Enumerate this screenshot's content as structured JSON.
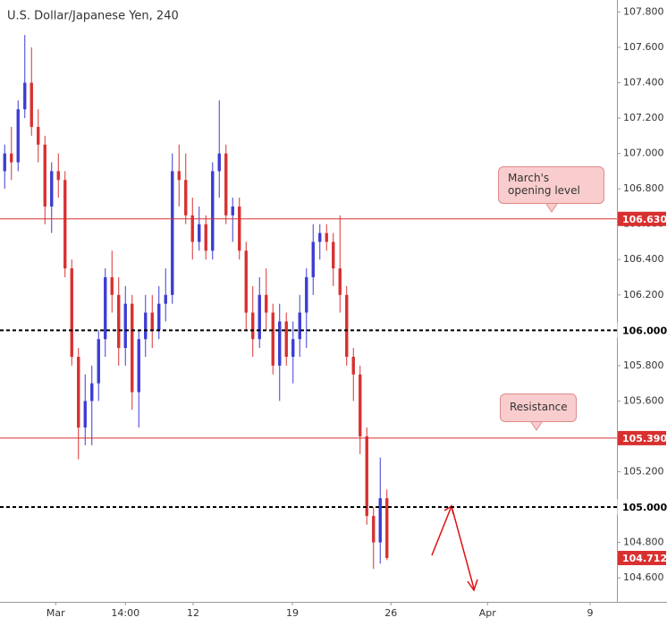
{
  "chart_data": {
    "type": "candlestick",
    "title": "U.S. Dollar/Japanese Yen, 240",
    "x": [
      0,
      1,
      2,
      3,
      4,
      5,
      6,
      7,
      8,
      9,
      10,
      11,
      12,
      13,
      14,
      15,
      16,
      17,
      18,
      19,
      20,
      21,
      22,
      23,
      24,
      25,
      26,
      27,
      28,
      29,
      30,
      31,
      32,
      33,
      34,
      35,
      36,
      37,
      38,
      39,
      40,
      41,
      42,
      43,
      44,
      45,
      46,
      47,
      48,
      49,
      50,
      51,
      52,
      53,
      54,
      55,
      56,
      57
    ],
    "open": [
      106.9,
      107.0,
      106.95,
      107.25,
      107.4,
      107.15,
      107.05,
      106.7,
      106.9,
      106.85,
      106.35,
      105.85,
      105.45,
      105.6,
      105.7,
      105.95,
      106.3,
      106.2,
      105.9,
      106.15,
      105.65,
      105.95,
      106.1,
      106.0,
      106.15,
      106.2,
      106.9,
      106.85,
      106.65,
      106.5,
      106.6,
      106.45,
      106.9,
      107.0,
      106.65,
      106.7,
      106.45,
      106.1,
      105.95,
      106.2,
      106.1,
      105.8,
      106.05,
      105.85,
      105.95,
      106.1,
      106.3,
      106.5,
      106.55,
      106.5,
      106.35,
      106.2,
      105.85,
      105.75,
      105.4,
      104.95,
      104.8,
      105.05
    ],
    "high": [
      107.05,
      107.15,
      107.3,
      107.67,
      107.6,
      107.25,
      107.1,
      106.95,
      107.0,
      106.9,
      106.4,
      105.9,
      105.75,
      105.8,
      106.0,
      106.35,
      106.45,
      106.3,
      106.25,
      106.2,
      106.0,
      106.2,
      106.2,
      106.25,
      106.35,
      107.0,
      107.05,
      107.0,
      106.75,
      106.7,
      106.65,
      106.95,
      107.3,
      107.05,
      106.75,
      106.75,
      106.5,
      106.25,
      106.3,
      106.35,
      106.15,
      106.15,
      106.1,
      106.05,
      106.2,
      106.35,
      106.6,
      106.6,
      106.6,
      106.55,
      106.65,
      106.25,
      105.9,
      105.8,
      105.45,
      105.0,
      105.28,
      105.1
    ],
    "low": [
      106.8,
      106.85,
      106.9,
      107.2,
      107.1,
      106.95,
      106.6,
      106.55,
      106.75,
      106.3,
      105.8,
      105.27,
      105.35,
      105.35,
      105.6,
      105.85,
      106.1,
      105.8,
      105.8,
      105.55,
      105.45,
      105.85,
      105.9,
      105.95,
      106.05,
      106.15,
      106.7,
      106.6,
      106.4,
      106.45,
      106.4,
      106.4,
      106.75,
      106.6,
      106.5,
      106.4,
      106.0,
      105.85,
      105.9,
      106.0,
      105.75,
      105.6,
      105.8,
      105.7,
      105.85,
      105.9,
      106.2,
      106.4,
      106.45,
      106.25,
      106.1,
      105.8,
      105.6,
      105.3,
      104.9,
      104.65,
      104.68,
      104.7
    ],
    "close": [
      107.0,
      106.95,
      107.25,
      107.4,
      107.15,
      107.05,
      106.7,
      106.9,
      106.85,
      106.35,
      105.85,
      105.45,
      105.6,
      105.7,
      105.95,
      106.3,
      106.2,
      105.9,
      106.15,
      105.65,
      105.95,
      106.1,
      106.0,
      106.15,
      106.2,
      106.9,
      106.85,
      106.65,
      106.5,
      106.6,
      106.45,
      106.9,
      107.0,
      106.65,
      106.7,
      106.45,
      106.1,
      105.95,
      106.2,
      106.1,
      105.8,
      106.05,
      105.85,
      105.95,
      106.1,
      106.3,
      106.5,
      106.55,
      106.5,
      106.35,
      106.2,
      105.85,
      105.75,
      105.4,
      104.95,
      104.8,
      105.05,
      104.712
    ],
    "up_color": "#3c3cd4",
    "down_color": "#d83030",
    "xlim": [
      -0.7,
      91.3
    ],
    "xticks": [
      {
        "value": 7.6,
        "label": "Mar"
      },
      {
        "value": 18,
        "label": "14:00"
      },
      {
        "value": 28.1,
        "label": "12"
      },
      {
        "value": 42.9,
        "label": "19"
      },
      {
        "value": 57.6,
        "label": "26"
      },
      {
        "value": 72,
        "label": "Apr"
      },
      {
        "value": 87.3,
        "label": "9"
      }
    ],
    "ylim": [
      104.464,
      107.868
    ],
    "yticks": [
      {
        "value": 104.6,
        "label": "104.600"
      },
      {
        "value": 104.8,
        "label": "104.800"
      },
      {
        "value": 105.0,
        "label": "105.000"
      },
      {
        "value": 105.2,
        "label": "105.200"
      },
      {
        "value": 105.4,
        "label": "105.400"
      },
      {
        "value": 105.6,
        "label": "105.600"
      },
      {
        "value": 105.8,
        "label": "105.800"
      },
      {
        "value": 106.0,
        "label": "106.000"
      },
      {
        "value": 106.2,
        "label": "106.200"
      },
      {
        "value": 106.4,
        "label": "106.400"
      },
      {
        "value": 106.6,
        "label": "106.600"
      },
      {
        "value": 106.8,
        "label": "106.800"
      },
      {
        "value": 107.0,
        "label": "107.000"
      },
      {
        "value": 107.2,
        "label": "107.200"
      },
      {
        "value": 107.4,
        "label": "107.400"
      },
      {
        "value": 107.6,
        "label": "107.600"
      },
      {
        "value": 107.8,
        "label": "107.800"
      }
    ],
    "levels": [
      {
        "value": 106.63,
        "label": "106.630",
        "style": "solid",
        "color": "#d83030"
      },
      {
        "value": 106.0,
        "label": "106.000",
        "style": "dashed",
        "color": "#000000"
      },
      {
        "value": 105.39,
        "label": "105.390",
        "style": "solid",
        "color": "#d83030"
      },
      {
        "value": 105.0,
        "label": "105.000",
        "style": "dashed",
        "color": "#000000"
      },
      {
        "value": 104.712,
        "label": "104.712",
        "style": "none",
        "color": "#d83030"
      }
    ],
    "annotations": [
      "March's opening level",
      "Resistance"
    ]
  }
}
